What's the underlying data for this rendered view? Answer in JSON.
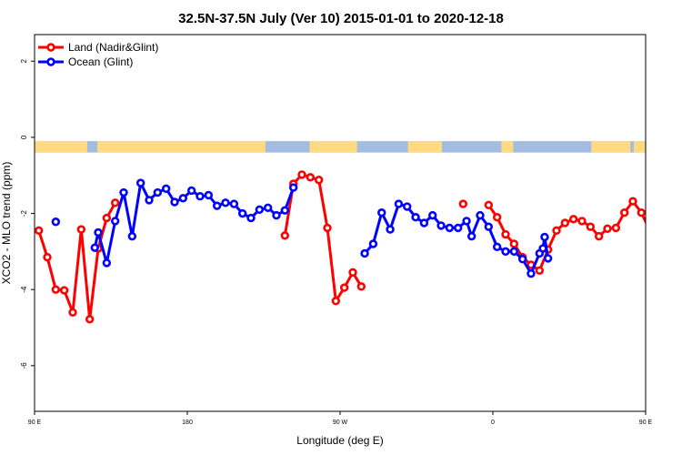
{
  "chart_data": {
    "type": "line",
    "title": "32.5N-37.5N July (Ver 10)   2015-01-01 to 2020-12-18",
    "xlabel": "Longitude (deg E)",
    "ylabel": "XCO2 - MLO trend (ppm)",
    "xlim": [
      90,
      450
    ],
    "ylim": [
      -7.2,
      2.7
    ],
    "x_ticks": [
      {
        "value": 90,
        "label": "90 E"
      },
      {
        "value": 180,
        "label": "180"
      },
      {
        "value": 270,
        "label": "90 W"
      },
      {
        "value": 360,
        "label": "0"
      },
      {
        "value": 450,
        "label": "90 E"
      }
    ],
    "y_ticks": [
      {
        "value": 2,
        "label": "2"
      },
      {
        "value": 0,
        "label": "0"
      },
      {
        "value": -2,
        "label": "-2"
      },
      {
        "value": -4,
        "label": "-4"
      },
      {
        "value": -6,
        "label": "-6"
      }
    ],
    "land_ocean_strip": {
      "y_range": [
        -0.4,
        -0.1
      ],
      "land_color": "#FFDA80",
      "ocean_color": "#A3BDE0",
      "land_ranges": [
        [
          90,
          121
        ],
        [
          127,
          226
        ],
        [
          252,
          280
        ],
        [
          310,
          330
        ],
        [
          365,
          372
        ],
        [
          418,
          441
        ],
        [
          443,
          450
        ]
      ]
    },
    "legend_position": "top-left",
    "series": [
      {
        "name": "Land (Nadir&Glint)",
        "color": "#FF0000",
        "points": [
          [
            92.5,
            -2.45
          ],
          [
            97.5,
            -3.15
          ],
          [
            102.5,
            -4.0
          ],
          [
            107.5,
            -4.02
          ],
          [
            112.5,
            -4.6
          ],
          [
            117.5,
            -2.42
          ],
          [
            122.5,
            -4.78
          ],
          [
            127.5,
            -2.92
          ],
          [
            132.5,
            -2.12
          ],
          [
            137.5,
            -1.72
          ],
          null,
          [
            237.5,
            -2.58
          ],
          [
            242.5,
            -1.22
          ],
          [
            247.5,
            -0.98
          ],
          [
            252.5,
            -1.05
          ],
          [
            257.5,
            -1.12
          ],
          [
            262.5,
            -2.38
          ],
          [
            267.5,
            -4.3
          ],
          [
            272.5,
            -3.95
          ],
          [
            277.5,
            -3.55
          ],
          [
            282.5,
            -3.92
          ],
          null,
          [
            342.5,
            -1.75
          ],
          null,
          [
            357.5,
            -1.78
          ],
          [
            362.5,
            -2.1
          ],
          [
            367.5,
            -2.55
          ],
          [
            372.5,
            -2.8
          ],
          [
            377.5,
            -3.15
          ],
          [
            382.5,
            -3.35
          ],
          [
            387.5,
            -3.5
          ],
          [
            392.5,
            -2.95
          ],
          [
            397.5,
            -2.45
          ],
          [
            402.5,
            -2.25
          ],
          [
            407.5,
            -2.15
          ],
          [
            412.5,
            -2.2
          ],
          [
            417.5,
            -2.35
          ],
          [
            422.5,
            -2.6
          ],
          [
            427.5,
            -2.4
          ],
          [
            432.5,
            -2.38
          ],
          [
            437.5,
            -1.98
          ],
          [
            442.5,
            -1.68
          ],
          [
            447.5,
            -1.98
          ],
          [
            452.5,
            -2.45
          ],
          [
            457.5,
            -3.15
          ],
          [
            462.5,
            -3.98
          ],
          [
            467.5,
            -4.02
          ],
          [
            472.5,
            -4.6
          ],
          [
            477.5,
            -2.42
          ],
          [
            482.5,
            -4.78
          ],
          [
            487.5,
            -2.92
          ],
          [
            492.5,
            -2.12
          ],
          [
            497.5,
            -1.72
          ]
        ]
      },
      {
        "name": "Ocean (Glint)",
        "color": "#0000FF",
        "points": [
          [
            102.5,
            -2.22
          ],
          null,
          [
            125.5,
            -2.9
          ],
          [
            127.5,
            -2.5
          ],
          [
            132.5,
            -3.3
          ],
          [
            137.5,
            -2.2
          ],
          [
            142.5,
            -1.45
          ],
          [
            147.5,
            -2.6
          ],
          [
            152.5,
            -1.2
          ],
          [
            157.5,
            -1.65
          ],
          [
            162.5,
            -1.45
          ],
          [
            167.5,
            -1.35
          ],
          [
            172.5,
            -1.7
          ],
          [
            177.5,
            -1.6
          ],
          [
            182.5,
            -1.4
          ],
          [
            187.5,
            -1.55
          ],
          [
            192.5,
            -1.52
          ],
          [
            197.5,
            -1.8
          ],
          [
            202.5,
            -1.72
          ],
          [
            207.5,
            -1.75
          ],
          [
            212.5,
            -2.0
          ],
          [
            217.5,
            -2.12
          ],
          [
            222.5,
            -1.9
          ],
          [
            227.5,
            -1.85
          ],
          [
            232.5,
            -2.05
          ],
          [
            237.5,
            -1.92
          ],
          [
            242.5,
            -1.32
          ],
          null,
          [
            284.5,
            -3.05
          ],
          [
            289.5,
            -2.8
          ],
          [
            294.5,
            -1.98
          ],
          [
            299.5,
            -2.42
          ],
          [
            304.5,
            -1.75
          ],
          [
            309.5,
            -1.82
          ],
          [
            314.5,
            -2.1
          ],
          [
            319.5,
            -2.25
          ],
          [
            324.5,
            -2.05
          ],
          [
            329.5,
            -2.32
          ],
          [
            334.5,
            -2.38
          ],
          [
            339.5,
            -2.38
          ],
          [
            344.5,
            -2.2
          ],
          [
            347.5,
            -2.6
          ],
          [
            352.5,
            -2.05
          ],
          [
            357.5,
            -2.35
          ],
          [
            362.5,
            -2.88
          ],
          [
            367.5,
            -3.0
          ],
          [
            372.5,
            -3.0
          ],
          [
            377.5,
            -3.2
          ],
          [
            382.5,
            -3.58
          ],
          [
            387.5,
            -3.05
          ],
          [
            389.5,
            -2.92
          ],
          [
            390.5,
            -2.62
          ],
          [
            392.5,
            -3.18
          ],
          null,
          [
            462.5,
            -2.22
          ],
          null,
          [
            485.5,
            -2.9
          ],
          [
            487.5,
            -2.5
          ],
          [
            492.5,
            -3.3
          ],
          [
            497.5,
            -2.2
          ],
          [
            502.5,
            -1.45
          ],
          [
            507.5,
            -2.6
          ],
          [
            512.5,
            -1.2
          ]
        ]
      }
    ]
  }
}
